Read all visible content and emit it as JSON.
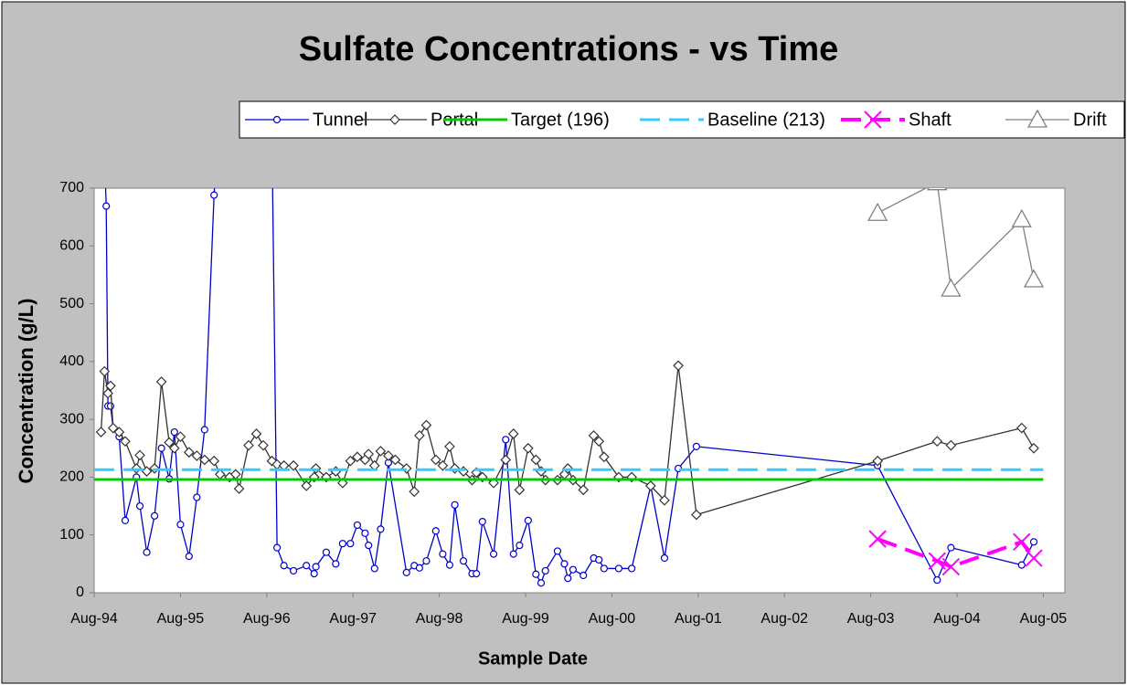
{
  "chart_data": {
    "type": "line",
    "title": "Sulfate Concentrations - vs Time",
    "x_label": "Sample Date",
    "y_label": "Concentration (g/L)",
    "xlim": [
      1994.58,
      2005.83
    ],
    "xticks": [
      {
        "value": 1994.58,
        "label": "Aug-94"
      },
      {
        "value": 1995.58,
        "label": "Aug-95"
      },
      {
        "value": 1996.58,
        "label": "Aug-96"
      },
      {
        "value": 1997.58,
        "label": "Aug-97"
      },
      {
        "value": 1998.58,
        "label": "Aug-98"
      },
      {
        "value": 1999.58,
        "label": "Aug-99"
      },
      {
        "value": 2000.58,
        "label": "Aug-00"
      },
      {
        "value": 2001.58,
        "label": "Aug-01"
      },
      {
        "value": 2002.58,
        "label": "Aug-02"
      },
      {
        "value": 2003.58,
        "label": "Aug-03"
      },
      {
        "value": 2004.58,
        "label": "Aug-04"
      },
      {
        "value": 2005.58,
        "label": "Aug-05"
      }
    ],
    "ylim": [
      0,
      700
    ],
    "yticks": [
      0,
      100,
      200,
      300,
      400,
      500,
      600,
      700
    ],
    "grid": false,
    "series": [
      {
        "name": "Tunnel",
        "color": "#0000cc",
        "marker": "circle",
        "dashed": false,
        "width": 1.3,
        "x": [
          1994.69,
          1994.72,
          1994.74,
          1994.77,
          1994.8,
          1994.87,
          1994.94,
          1995.07,
          1995.11,
          1995.19,
          1995.28,
          1995.36,
          1995.45,
          1995.51,
          1995.58,
          1995.68,
          1995.77,
          1995.86,
          1995.97,
          1996.01,
          1996.64,
          1996.7,
          1996.78,
          1996.89,
          1997.04,
          1997.13,
          1997.15,
          1997.27,
          1997.38,
          1997.46,
          1997.55,
          1997.63,
          1997.72,
          1997.76,
          1997.83,
          1997.9,
          1997.99,
          1998.2,
          1998.29,
          1998.35,
          1998.43,
          1998.54,
          1998.62,
          1998.7,
          1998.76,
          1998.86,
          1998.96,
          1999.01,
          1999.08,
          1999.21,
          1999.35,
          1999.44,
          1999.51,
          1999.61,
          1999.7,
          1999.76,
          1999.81,
          1999.95,
          2000.03,
          2000.07,
          2000.13,
          2000.25,
          2000.37,
          2000.43,
          2000.49,
          2000.66,
          2000.81,
          2001.03,
          2001.19,
          2001.35,
          2001.56,
          2003.66,
          2004.35,
          2004.51,
          2005.33,
          2005.47
        ],
        "values": [
          800,
          669,
          323,
          323,
          285,
          270,
          125,
          200,
          150,
          70,
          133,
          250,
          197,
          278,
          118,
          63,
          165,
          282,
          688,
          800,
          800,
          78,
          47,
          38,
          47,
          33,
          45,
          70,
          50,
          85,
          85,
          117,
          103,
          82,
          42,
          110,
          225,
          35,
          47,
          43,
          55,
          107,
          67,
          48,
          152,
          55,
          33,
          33,
          123,
          67,
          265,
          67,
          82,
          125,
          32,
          17,
          38,
          72,
          50,
          25,
          40,
          30,
          60,
          57,
          42,
          42,
          42,
          185,
          60,
          215,
          253,
          220,
          22,
          78,
          48,
          88
        ]
      },
      {
        "name": "Portal",
        "color": "#333333",
        "marker": "diamond",
        "dashed": false,
        "width": 1.3,
        "x": [
          1994.66,
          1994.7,
          1994.74,
          1994.77,
          1994.8,
          1994.87,
          1994.94,
          1995.07,
          1995.11,
          1995.19,
          1995.28,
          1995.36,
          1995.45,
          1995.51,
          1995.58,
          1995.68,
          1995.77,
          1995.86,
          1995.97,
          1996.04,
          1996.15,
          1996.22,
          1996.26,
          1996.37,
          1996.46,
          1996.54,
          1996.64,
          1996.7,
          1996.78,
          1996.89,
          1997.04,
          1997.13,
          1997.15,
          1997.27,
          1997.38,
          1997.46,
          1997.55,
          1997.63,
          1997.72,
          1997.76,
          1997.83,
          1997.9,
          1997.99,
          1998.07,
          1998.2,
          1998.29,
          1998.35,
          1998.43,
          1998.54,
          1998.62,
          1998.7,
          1998.76,
          1998.86,
          1998.96,
          1999.01,
          1999.08,
          1999.21,
          1999.35,
          1999.44,
          1999.51,
          1999.61,
          1999.7,
          1999.76,
          1999.81,
          1999.95,
          2000.03,
          2000.07,
          2000.13,
          2000.25,
          2000.37,
          2000.43,
          2000.49,
          2000.66,
          2000.81,
          2001.03,
          2001.19,
          2001.35,
          2001.56,
          2003.66,
          2004.35,
          2004.51,
          2005.33,
          2005.47
        ],
        "values": [
          278,
          383,
          345,
          358,
          285,
          278,
          262,
          215,
          238,
          210,
          215,
          365,
          260,
          250,
          270,
          243,
          237,
          230,
          228,
          205,
          200,
          205,
          180,
          255,
          275,
          255,
          228,
          222,
          220,
          220,
          185,
          200,
          215,
          200,
          210,
          190,
          228,
          235,
          230,
          240,
          220,
          245,
          237,
          230,
          215,
          175,
          272,
          290,
          230,
          220,
          253,
          215,
          210,
          195,
          208,
          200,
          190,
          230,
          275,
          178,
          250,
          230,
          210,
          195,
          195,
          205,
          215,
          195,
          178,
          272,
          262,
          235,
          200,
          200,
          185,
          160,
          393,
          135,
          228,
          262,
          255,
          285,
          250
        ]
      },
      {
        "name": "Target (196)",
        "color": "#00cc00",
        "marker": "none",
        "dashed": false,
        "width": 3,
        "x": [
          1994.58,
          2005.58
        ],
        "values": [
          196,
          196
        ]
      },
      {
        "name": "Baseline (213)",
        "color": "#33ccff",
        "marker": "none",
        "dashed": true,
        "width": 3,
        "x": [
          1994.58,
          2005.58
        ],
        "values": [
          213,
          213
        ]
      },
      {
        "name": "Shaft",
        "color": "#ff00ff",
        "marker": "x",
        "dashed": true,
        "width": 4,
        "x": [
          2003.66,
          2004.35,
          2004.51,
          2005.33,
          2005.47
        ],
        "values": [
          93,
          55,
          45,
          88,
          60
        ]
      },
      {
        "name": "Drift",
        "color": "#808080",
        "marker": "triangle",
        "dashed": false,
        "width": 1.3,
        "x": [
          2003.66,
          2004.35,
          2004.51,
          2005.33,
          2005.47
        ],
        "values": [
          657,
          710,
          526,
          646,
          542
        ]
      }
    ]
  }
}
